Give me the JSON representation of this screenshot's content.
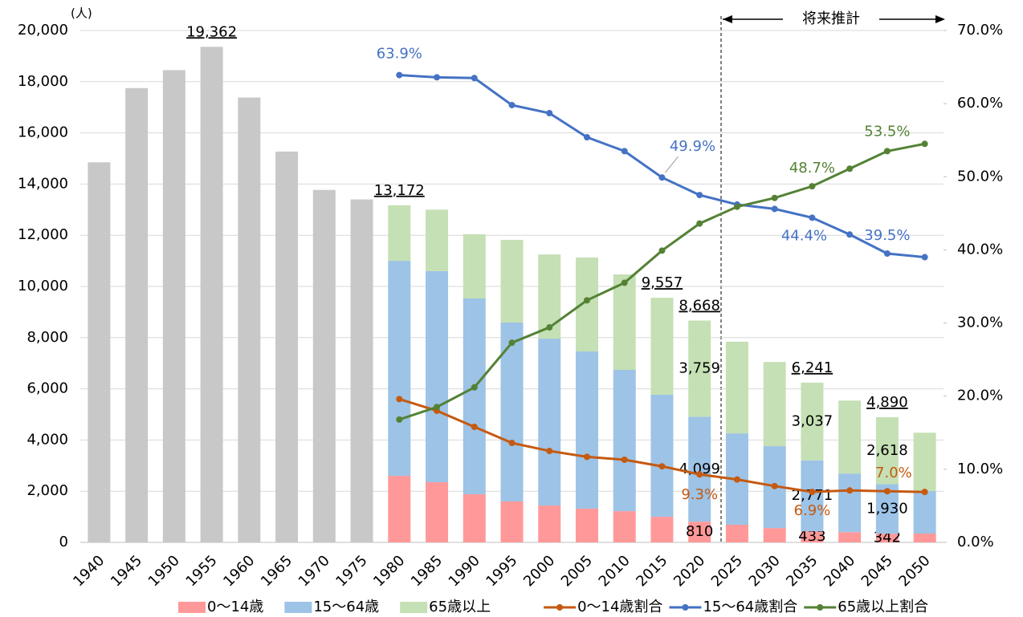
{
  "chart_data": {
    "type": "combo",
    "y_unit_label": "(人)",
    "projection_label": "将来推計",
    "categories": [
      "1940",
      "1945",
      "1950",
      "1955",
      "1960",
      "1965",
      "1970",
      "1975",
      "1980",
      "1985",
      "1990",
      "1995",
      "2000",
      "2005",
      "2010",
      "2015",
      "2020",
      "2025",
      "2030",
      "2035",
      "2040",
      "2045",
      "2050"
    ],
    "totals": {
      "color": "#c8c8c8",
      "values": [
        14850,
        17750,
        18450,
        19362,
        17380,
        15270,
        13770,
        13400,
        13172,
        null,
        null,
        null,
        null,
        null,
        null,
        9557,
        8668,
        null,
        null,
        6241,
        null,
        4890,
        null
      ],
      "value_labels": [
        null,
        null,
        null,
        "19,362",
        null,
        null,
        null,
        null,
        "13,172",
        null,
        null,
        null,
        null,
        null,
        null,
        "9,557",
        "8,668",
        null,
        null,
        "6,241",
        null,
        "4,890",
        null
      ]
    },
    "series": [
      {
        "name": "0～14歳",
        "type": "bar",
        "color": "#ff9999",
        "values": [
          null,
          null,
          null,
          null,
          null,
          null,
          null,
          null,
          2600,
          2350,
          1880,
          1600,
          1440,
          1320,
          1220,
          1000,
          810,
          690,
          560,
          433,
          400,
          342,
          345
        ],
        "value_labels": [
          null,
          null,
          null,
          null,
          null,
          null,
          null,
          null,
          null,
          null,
          null,
          null,
          null,
          null,
          null,
          null,
          "810",
          null,
          null,
          "433",
          null,
          "342",
          null
        ]
      },
      {
        "name": "15～64歳",
        "type": "bar",
        "color": "#9dc3e6",
        "values": [
          null,
          null,
          null,
          null,
          null,
          null,
          null,
          null,
          8400,
          8250,
          7650,
          6990,
          6520,
          6140,
          5520,
          4770,
          4099,
          3570,
          3200,
          2771,
          2290,
          1930,
          1660
        ],
        "value_labels": [
          null,
          null,
          null,
          null,
          null,
          null,
          null,
          null,
          null,
          null,
          null,
          null,
          null,
          null,
          null,
          null,
          "4,099",
          null,
          null,
          "2,771",
          null,
          "1,930",
          null
        ]
      },
      {
        "name": "65歳以上",
        "type": "bar",
        "color": "#c5e0b4",
        "values": [
          null,
          null,
          null,
          null,
          null,
          null,
          null,
          null,
          2172,
          2400,
          2510,
          3230,
          3290,
          3670,
          3730,
          3787,
          3759,
          3580,
          3290,
          3037,
          2850,
          2618,
          2280
        ],
        "value_labels": [
          null,
          null,
          null,
          null,
          null,
          null,
          null,
          null,
          null,
          null,
          null,
          null,
          null,
          null,
          null,
          null,
          "3,759",
          null,
          null,
          "3,037",
          null,
          "2,618",
          null
        ]
      },
      {
        "name": "0～14歳割合",
        "type": "line",
        "axis": "y2",
        "color": "#c55a11",
        "values": [
          null,
          null,
          null,
          null,
          null,
          null,
          null,
          null,
          19.6,
          18.0,
          15.8,
          13.6,
          12.5,
          11.7,
          11.3,
          10.4,
          9.3,
          8.6,
          7.7,
          6.9,
          7.1,
          7.0,
          6.9
        ],
        "value_labels": [
          null,
          null,
          null,
          null,
          null,
          null,
          null,
          null,
          null,
          null,
          null,
          null,
          null,
          null,
          null,
          null,
          "9.3%",
          null,
          null,
          "6.9%",
          null,
          "7.0%",
          null
        ]
      },
      {
        "name": "15～64歳割合",
        "type": "line",
        "axis": "y2",
        "color": "#4472c4",
        "values": [
          null,
          null,
          null,
          null,
          null,
          null,
          null,
          null,
          63.9,
          63.6,
          63.5,
          59.8,
          58.7,
          55.4,
          53.5,
          49.9,
          47.5,
          46.2,
          45.6,
          44.4,
          42.1,
          39.5,
          39.0
        ],
        "value_labels": [
          null,
          null,
          null,
          null,
          null,
          null,
          null,
          null,
          "63.9%",
          null,
          null,
          null,
          null,
          null,
          null,
          "49.9%",
          null,
          null,
          null,
          "44.4%",
          null,
          "39.5%",
          null
        ]
      },
      {
        "name": "65歳以上割合",
        "type": "line",
        "axis": "y2",
        "color": "#548235",
        "values": [
          null,
          null,
          null,
          null,
          null,
          null,
          null,
          null,
          16.8,
          18.5,
          21.2,
          27.3,
          29.4,
          33.1,
          35.5,
          39.9,
          43.6,
          45.9,
          47.1,
          48.7,
          51.1,
          53.5,
          54.5
        ],
        "value_labels": [
          null,
          null,
          null,
          null,
          null,
          null,
          null,
          null,
          null,
          null,
          null,
          null,
          null,
          null,
          null,
          null,
          null,
          null,
          null,
          "48.7%",
          null,
          "53.5%",
          null
        ]
      }
    ],
    "ylim": [
      0,
      20000
    ],
    "yticks": [
      {
        "value": 0,
        "label": "0"
      },
      {
        "value": 2000,
        "label": "2,000"
      },
      {
        "value": 4000,
        "label": "4,000"
      },
      {
        "value": 6000,
        "label": "6,000"
      },
      {
        "value": 8000,
        "label": "8,000"
      },
      {
        "value": 10000,
        "label": "10,000"
      },
      {
        "value": 12000,
        "label": "12,000"
      },
      {
        "value": 14000,
        "label": "14,000"
      },
      {
        "value": 16000,
        "label": "16,000"
      },
      {
        "value": 18000,
        "label": "18,000"
      },
      {
        "value": 20000,
        "label": "20,000"
      }
    ],
    "y2lim": [
      0,
      70
    ],
    "y2ticks": [
      {
        "value": 0,
        "label": "0.0%"
      },
      {
        "value": 10,
        "label": "10.0%"
      },
      {
        "value": 20,
        "label": "20.0%"
      },
      {
        "value": 30,
        "label": "30.0%"
      },
      {
        "value": 40,
        "label": "40.0%"
      },
      {
        "value": 50,
        "label": "50.0%"
      },
      {
        "value": 60,
        "label": "60.0%"
      },
      {
        "value": 70,
        "label": "70.0%"
      }
    ],
    "grid": true
  }
}
